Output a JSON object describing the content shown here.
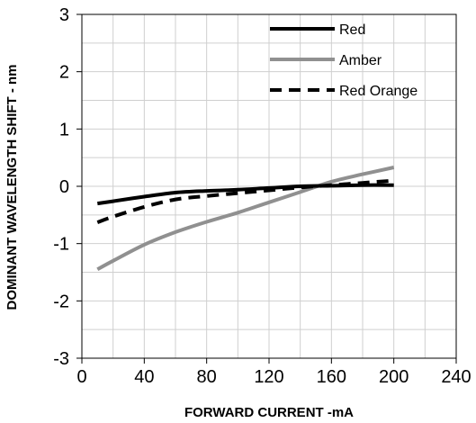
{
  "chart_data": {
    "type": "line",
    "xlabel": "FORWARD CURRENT -mA",
    "ylabel": "DOMINANT WAVELENGTH SHIFT - nm",
    "xlim": [
      0,
      240
    ],
    "ylim": [
      -3,
      3
    ],
    "x_ticks": [
      "0",
      "40",
      "80",
      "120",
      "160",
      "200",
      "240"
    ],
    "y_ticks": [
      "3",
      "2",
      "1",
      "0",
      "-1",
      "-2",
      "-3"
    ],
    "grid": true,
    "legend_position": "top-right",
    "series": [
      {
        "name": "Red",
        "color": "#000000",
        "dash": "solid",
        "x": [
          10,
          20,
          40,
          60,
          80,
          100,
          120,
          140,
          160,
          180,
          200
        ],
        "y": [
          -0.3,
          -0.26,
          -0.18,
          -0.11,
          -0.08,
          -0.06,
          -0.03,
          0.0,
          0.01,
          0.02,
          0.02
        ]
      },
      {
        "name": "Amber",
        "color": "#909090",
        "dash": "solid",
        "x": [
          10,
          20,
          40,
          60,
          80,
          100,
          120,
          140,
          160,
          180,
          200
        ],
        "y": [
          -1.45,
          -1.3,
          -1.02,
          -0.8,
          -0.62,
          -0.46,
          -0.28,
          -0.1,
          0.08,
          0.21,
          0.33
        ]
      },
      {
        "name": "Red Orange",
        "color": "#000000",
        "dash": "dashed",
        "x": [
          10,
          20,
          40,
          60,
          80,
          100,
          120,
          140,
          160,
          180,
          200
        ],
        "y": [
          -0.63,
          -0.53,
          -0.36,
          -0.23,
          -0.17,
          -0.12,
          -0.07,
          -0.02,
          0.02,
          0.06,
          0.1
        ]
      }
    ]
  }
}
